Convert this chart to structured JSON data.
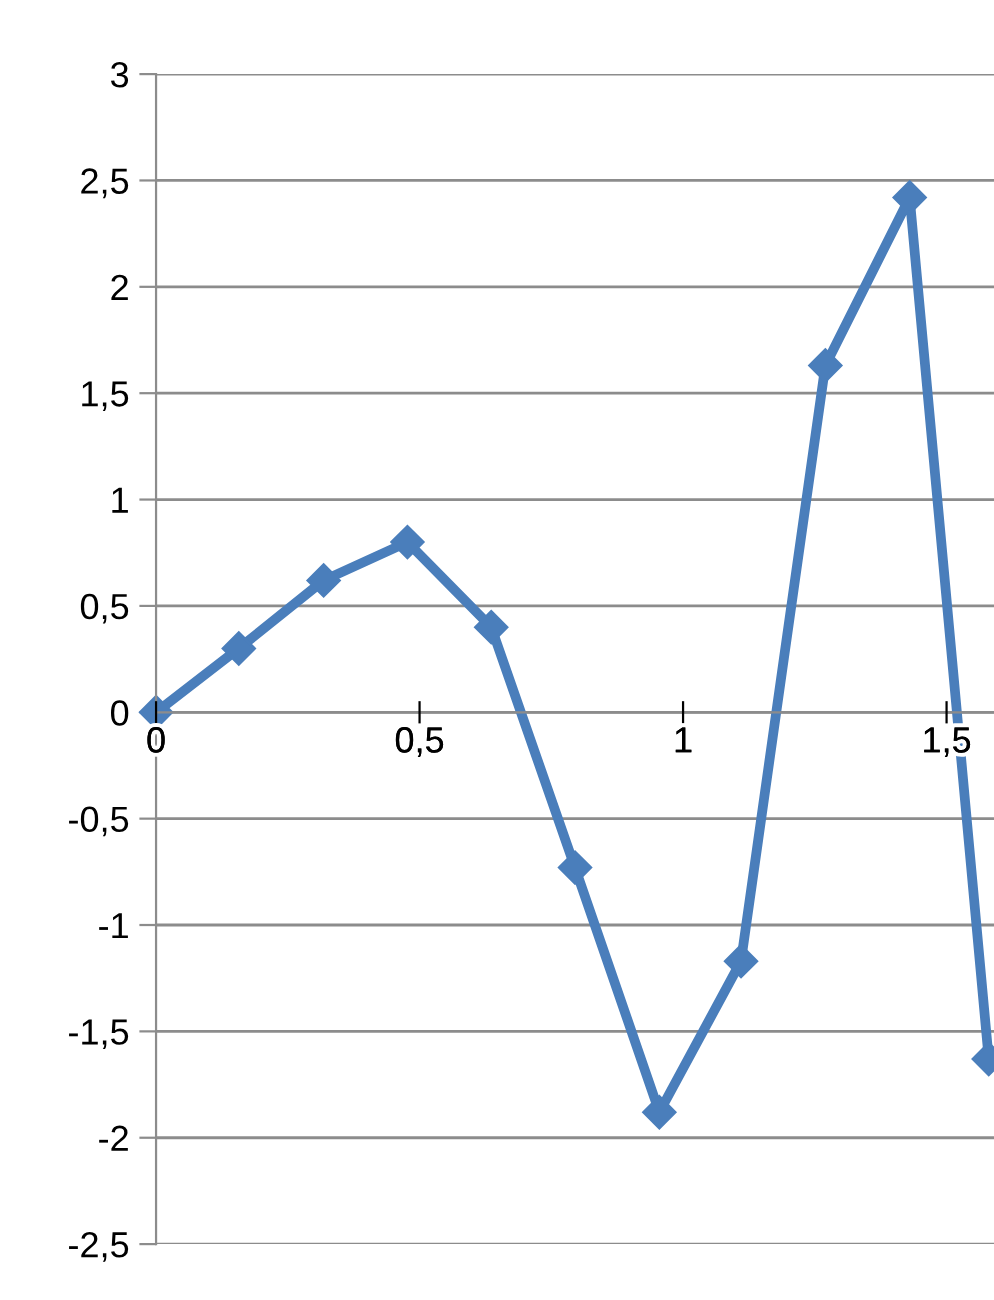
{
  "chart_data": {
    "type": "line",
    "x": [
      0,
      0.157,
      0.318,
      0.477,
      0.636,
      0.795,
      0.955,
      1.11,
      1.27,
      1.43,
      1.58
    ],
    "series": [
      {
        "color": "#4a7ebb",
        "values": [
          0,
          0.3,
          0.62,
          0.8,
          0.4,
          -0.73,
          -1.88,
          -1.17,
          1.63,
          2.42,
          -1.63
        ]
      }
    ],
    "xlim": [
      0,
      1.59
    ],
    "xticks": [
      0,
      {
        "value": 0.5,
        "label": "0,5"
      },
      1,
      {
        "value": 1.5,
        "label": "1,5"
      }
    ],
    "ylim": [
      -2.5,
      3
    ],
    "yticks": [
      {
        "value": -2.5,
        "label": "-2,5"
      },
      -2,
      {
        "value": -1.5,
        "label": "-1,5"
      },
      -1,
      {
        "value": -0.5,
        "label": "-0,5"
      },
      0,
      {
        "value": 0.5,
        "label": "0,5"
      },
      1,
      {
        "value": 1.5,
        "label": "1,5"
      },
      2,
      {
        "value": 2.5,
        "label": "2,5"
      },
      3
    ],
    "grid": "y",
    "marker": "diamond",
    "line_style": "solid",
    "legend": false
  }
}
